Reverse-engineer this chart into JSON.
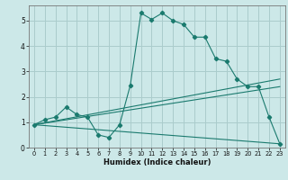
{
  "title": "",
  "xlabel": "Humidex (Indice chaleur)",
  "background_color": "#cce8e8",
  "grid_color": "#aacccc",
  "line_color": "#1a7a6e",
  "xlim": [
    -0.5,
    23.5
  ],
  "ylim": [
    0,
    5.6
  ],
  "yticks": [
    0,
    1,
    2,
    3,
    4,
    5
  ],
  "xticks": [
    0,
    1,
    2,
    3,
    4,
    5,
    6,
    7,
    8,
    9,
    10,
    11,
    12,
    13,
    14,
    15,
    16,
    17,
    18,
    19,
    20,
    21,
    22,
    23
  ],
  "series": [
    [
      0,
      0.9
    ],
    [
      1,
      1.1
    ],
    [
      2,
      1.2
    ],
    [
      3,
      1.6
    ],
    [
      4,
      1.3
    ],
    [
      5,
      1.2
    ],
    [
      6,
      0.5
    ],
    [
      7,
      0.4
    ],
    [
      8,
      0.9
    ],
    [
      9,
      2.45
    ],
    [
      10,
      5.3
    ],
    [
      11,
      5.05
    ],
    [
      12,
      5.3
    ],
    [
      13,
      5.0
    ],
    [
      14,
      4.85
    ],
    [
      15,
      4.35
    ],
    [
      16,
      4.35
    ],
    [
      17,
      3.5
    ],
    [
      18,
      3.4
    ],
    [
      19,
      2.7
    ],
    [
      20,
      2.4
    ],
    [
      21,
      2.4
    ],
    [
      22,
      1.2
    ],
    [
      23,
      0.15
    ]
  ],
  "line2": [
    [
      0,
      0.9
    ],
    [
      23,
      0.15
    ]
  ],
  "line3": [
    [
      0,
      0.9
    ],
    [
      23,
      2.4
    ]
  ],
  "line4": [
    [
      0,
      0.9
    ],
    [
      23,
      2.7
    ]
  ]
}
